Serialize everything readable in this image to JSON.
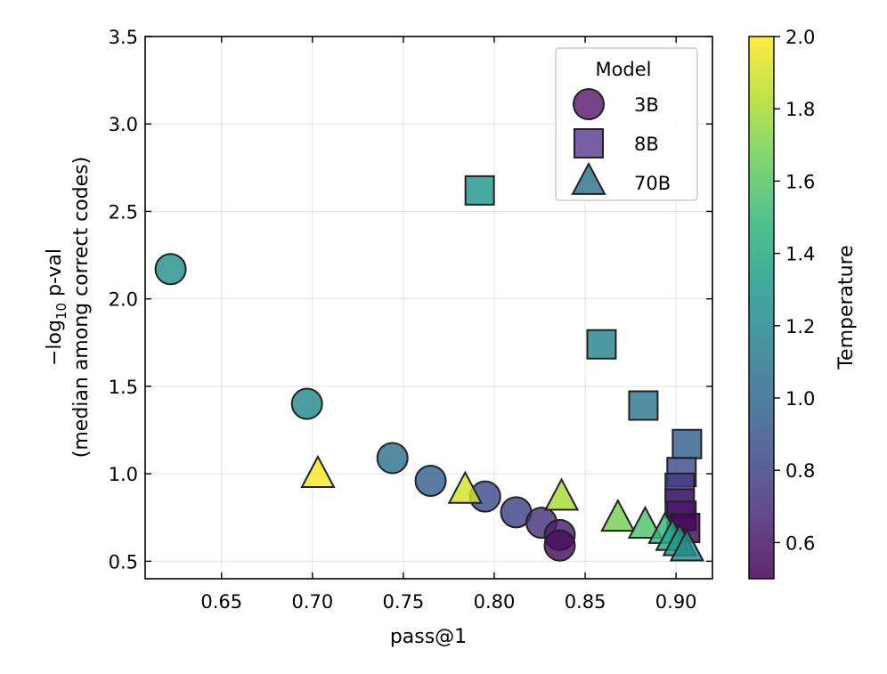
{
  "chart_data": {
    "type": "scatter",
    "xlabel": "pass@1",
    "ylabel_main": "−log",
    "ylabel_sub": "10",
    "ylabel_rest": " p-val",
    "ylabel_line2": "(median among correct codes)",
    "xlim": [
      0.608,
      0.92
    ],
    "ylim": [
      0.4,
      3.5
    ],
    "xticks": [
      "0.65",
      "0.70",
      "0.75",
      "0.80",
      "0.85",
      "0.90"
    ],
    "xtick_values": [
      0.65,
      0.7,
      0.75,
      0.8,
      0.85,
      0.9
    ],
    "yticks": [
      "0.5",
      "1.0",
      "1.5",
      "2.0",
      "2.5",
      "3.0",
      "3.5"
    ],
    "ytick_values": [
      0.5,
      1.0,
      1.5,
      2.0,
      2.5,
      3.0,
      3.5
    ],
    "grid": true,
    "legend": {
      "title": "Model",
      "placement": "top-right",
      "entries": [
        {
          "label": "3B",
          "marker": "circle",
          "color": "#5a1a6b"
        },
        {
          "label": "8B",
          "marker": "square",
          "color": "#5a3c8f"
        },
        {
          "label": "70B",
          "marker": "triangle",
          "color": "#2e6f8e"
        }
      ]
    },
    "colorbar": {
      "label": "Temperature",
      "min": 0.5,
      "max": 2.0,
      "ticks": [
        "0.6",
        "0.8",
        "1.0",
        "1.2",
        "1.4",
        "1.6",
        "1.8",
        "2.0"
      ],
      "tick_values": [
        0.6,
        0.8,
        1.0,
        1.2,
        1.4,
        1.6,
        1.8,
        2.0
      ],
      "colormap": [
        "#440154",
        "#482878",
        "#3e4989",
        "#31688e",
        "#26828e",
        "#1f9e89",
        "#35b779",
        "#6ece58",
        "#b5de2b",
        "#fde725"
      ]
    },
    "series": [
      {
        "name": "3B",
        "marker": "circle",
        "points": [
          {
            "x": 0.622,
            "y": 2.17,
            "t": 1.25
          },
          {
            "x": 0.697,
            "y": 1.4,
            "t": 1.2
          },
          {
            "x": 0.744,
            "y": 1.09,
            "t": 1.05
          },
          {
            "x": 0.765,
            "y": 0.96,
            "t": 0.95
          },
          {
            "x": 0.795,
            "y": 0.87,
            "t": 0.85
          },
          {
            "x": 0.812,
            "y": 0.78,
            "t": 0.8
          },
          {
            "x": 0.826,
            "y": 0.72,
            "t": 0.72
          },
          {
            "x": 0.836,
            "y": 0.65,
            "t": 0.62
          },
          {
            "x": 0.836,
            "y": 0.59,
            "t": 0.55
          }
        ]
      },
      {
        "name": "8B",
        "marker": "square",
        "points": [
          {
            "x": 0.792,
            "y": 2.62,
            "t": 1.28
          },
          {
            "x": 0.859,
            "y": 1.74,
            "t": 1.18
          },
          {
            "x": 0.882,
            "y": 1.39,
            "t": 1.1
          },
          {
            "x": 0.906,
            "y": 1.17,
            "t": 0.95
          },
          {
            "x": 0.903,
            "y": 1.01,
            "t": 0.85
          },
          {
            "x": 0.902,
            "y": 0.92,
            "t": 0.75
          },
          {
            "x": 0.902,
            "y": 0.83,
            "t": 0.65
          },
          {
            "x": 0.903,
            "y": 0.76,
            "t": 0.58
          },
          {
            "x": 0.905,
            "y": 0.69,
            "t": 0.52
          }
        ]
      },
      {
        "name": "70B",
        "marker": "triangle",
        "points": [
          {
            "x": 0.703,
            "y": 0.99,
            "t": 2.0
          },
          {
            "x": 0.784,
            "y": 0.9,
            "t": 1.9
          },
          {
            "x": 0.837,
            "y": 0.86,
            "t": 1.8
          },
          {
            "x": 0.868,
            "y": 0.74,
            "t": 1.68
          },
          {
            "x": 0.883,
            "y": 0.7,
            "t": 1.58
          },
          {
            "x": 0.894,
            "y": 0.67,
            "t": 1.48
          },
          {
            "x": 0.898,
            "y": 0.63,
            "t": 1.38
          },
          {
            "x": 0.902,
            "y": 0.6,
            "t": 1.3
          },
          {
            "x": 0.906,
            "y": 0.57,
            "t": 1.22
          }
        ]
      }
    ]
  }
}
